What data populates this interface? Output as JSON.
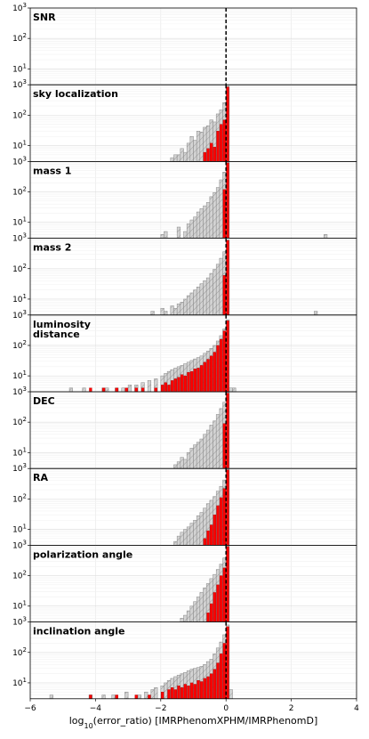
{
  "chart_data": {
    "type": "histogram",
    "xlabel_parts": {
      "prefix": "log",
      "sub": "10",
      "suffix": "(error_ratio) [IMRPhenomXPHM/IMRPhenomD]"
    },
    "xlim": [
      -6,
      4
    ],
    "xticks": [
      -6,
      -4,
      -2,
      0,
      2,
      4
    ],
    "yscale": "log",
    "ylim": [
      3,
      1000
    ],
    "yticks": [
      {
        "value": 10,
        "label": "10",
        "exp": "1"
      },
      {
        "value": 100,
        "label": "10",
        "exp": "2"
      },
      {
        "value": 1000,
        "label": "10",
        "exp": "3"
      }
    ],
    "reference_line_x": 0,
    "bin_width": 0.1,
    "grid": true,
    "series_style": {
      "all": {
        "fill": "#d3d3d3",
        "stroke": "#888888",
        "hatch": true
      },
      "highlight": {
        "fill": "#ff0000",
        "stroke": "#aa0000"
      }
    },
    "panels": [
      {
        "title": [
          "SNR"
        ],
        "bins_all": [],
        "bins_highlight": []
      },
      {
        "title": [
          "sky localization"
        ],
        "bins_all": [
          [
            -1.7,
            4
          ],
          [
            -1.6,
            5
          ],
          [
            -1.5,
            5
          ],
          [
            -1.4,
            8
          ],
          [
            -1.3,
            6
          ],
          [
            -1.2,
            12
          ],
          [
            -1.1,
            20
          ],
          [
            -1.0,
            15
          ],
          [
            -0.9,
            30
          ],
          [
            -0.8,
            28
          ],
          [
            -0.7,
            40
          ],
          [
            -0.6,
            45
          ],
          [
            -0.5,
            70
          ],
          [
            -0.4,
            60
          ],
          [
            -0.3,
            110
          ],
          [
            -0.2,
            150
          ],
          [
            -0.1,
            260
          ],
          [
            0.0,
            900
          ]
        ],
        "bins_highlight": [
          [
            -0.7,
            6
          ],
          [
            -0.6,
            8
          ],
          [
            -0.5,
            12
          ],
          [
            -0.4,
            9
          ],
          [
            -0.3,
            30
          ],
          [
            -0.2,
            50
          ],
          [
            -0.1,
            70
          ],
          [
            0.0,
            850
          ]
        ]
      },
      {
        "title": [
          "mass 1"
        ],
        "bins_all": [
          [
            -2.0,
            4
          ],
          [
            -1.9,
            5
          ],
          [
            -1.5,
            7
          ],
          [
            -1.3,
            5
          ],
          [
            -1.2,
            9
          ],
          [
            -1.1,
            12
          ],
          [
            -1.0,
            15
          ],
          [
            -0.9,
            22
          ],
          [
            -0.8,
            28
          ],
          [
            -0.7,
            35
          ],
          [
            -0.6,
            45
          ],
          [
            -0.5,
            70
          ],
          [
            -0.4,
            95
          ],
          [
            -0.3,
            140
          ],
          [
            -0.2,
            250
          ],
          [
            -0.1,
            450
          ],
          [
            0.0,
            950
          ],
          [
            3.0,
            4
          ]
        ],
        "bins_highlight": [
          [
            -0.1,
            120
          ],
          [
            0.0,
            900
          ]
        ]
      },
      {
        "title": [
          "mass 2"
        ],
        "bins_all": [
          [
            -2.3,
            4
          ],
          [
            -2.0,
            5
          ],
          [
            -1.9,
            4
          ],
          [
            -1.7,
            6
          ],
          [
            -1.6,
            5
          ],
          [
            -1.5,
            7
          ],
          [
            -1.4,
            8
          ],
          [
            -1.3,
            10
          ],
          [
            -1.2,
            13
          ],
          [
            -1.1,
            16
          ],
          [
            -1.0,
            20
          ],
          [
            -0.9,
            25
          ],
          [
            -0.8,
            32
          ],
          [
            -0.7,
            40
          ],
          [
            -0.6,
            50
          ],
          [
            -0.5,
            70
          ],
          [
            -0.4,
            95
          ],
          [
            -0.3,
            140
          ],
          [
            -0.2,
            220
          ],
          [
            -0.1,
            360
          ],
          [
            0.0,
            900
          ],
          [
            2.7,
            4
          ]
        ],
        "bins_highlight": [
          [
            -0.1,
            60
          ],
          [
            0.0,
            850
          ]
        ]
      },
      {
        "title": [
          "luminosity",
          "distance"
        ],
        "bins_all": [
          [
            -4.8,
            4
          ],
          [
            -4.4,
            4
          ],
          [
            -3.8,
            4
          ],
          [
            -3.7,
            4
          ],
          [
            -3.4,
            4
          ],
          [
            -3.2,
            4
          ],
          [
            -3.0,
            5
          ],
          [
            -2.8,
            5
          ],
          [
            -2.6,
            6
          ],
          [
            -2.4,
            7
          ],
          [
            -2.2,
            8
          ],
          [
            -2.0,
            10
          ],
          [
            -1.9,
            12
          ],
          [
            -1.8,
            14
          ],
          [
            -1.7,
            16
          ],
          [
            -1.6,
            18
          ],
          [
            -1.5,
            20
          ],
          [
            -1.4,
            22
          ],
          [
            -1.3,
            25
          ],
          [
            -1.2,
            28
          ],
          [
            -1.1,
            32
          ],
          [
            -1.0,
            36
          ],
          [
            -0.9,
            40
          ],
          [
            -0.8,
            45
          ],
          [
            -0.7,
            55
          ],
          [
            -0.6,
            65
          ],
          [
            -0.5,
            80
          ],
          [
            -0.4,
            100
          ],
          [
            -0.3,
            140
          ],
          [
            -0.2,
            210
          ],
          [
            -0.1,
            350
          ],
          [
            0.0,
            700
          ],
          [
            0.1,
            4
          ],
          [
            0.2,
            4
          ]
        ],
        "bins_highlight": [
          [
            -4.2,
            4
          ],
          [
            -3.8,
            4
          ],
          [
            -3.4,
            4
          ],
          [
            -3.1,
            4
          ],
          [
            -2.8,
            4
          ],
          [
            -2.6,
            4
          ],
          [
            -2.2,
            4
          ],
          [
            -2.0,
            5
          ],
          [
            -1.9,
            6
          ],
          [
            -1.8,
            5
          ],
          [
            -1.7,
            7
          ],
          [
            -1.6,
            8
          ],
          [
            -1.5,
            9
          ],
          [
            -1.4,
            11
          ],
          [
            -1.3,
            10
          ],
          [
            -1.2,
            13
          ],
          [
            -1.1,
            14
          ],
          [
            -1.0,
            17
          ],
          [
            -0.9,
            18
          ],
          [
            -0.8,
            22
          ],
          [
            -0.7,
            28
          ],
          [
            -0.6,
            35
          ],
          [
            -0.5,
            45
          ],
          [
            -0.4,
            60
          ],
          [
            -0.3,
            100
          ],
          [
            -0.2,
            160
          ],
          [
            -0.1,
            300
          ],
          [
            0.0,
            650
          ]
        ]
      },
      {
        "title": [
          "DEC"
        ],
        "bins_all": [
          [
            -1.6,
            4
          ],
          [
            -1.5,
            5
          ],
          [
            -1.4,
            7
          ],
          [
            -1.3,
            6
          ],
          [
            -1.2,
            10
          ],
          [
            -1.1,
            14
          ],
          [
            -1.0,
            18
          ],
          [
            -0.9,
            22
          ],
          [
            -0.8,
            28
          ],
          [
            -0.7,
            40
          ],
          [
            -0.6,
            55
          ],
          [
            -0.5,
            80
          ],
          [
            -0.4,
            110
          ],
          [
            -0.3,
            180
          ],
          [
            -0.2,
            280
          ],
          [
            -0.1,
            450
          ],
          [
            0.0,
            950
          ]
        ],
        "bins_highlight": [
          [
            -0.1,
            90
          ],
          [
            0.0,
            900
          ]
        ]
      },
      {
        "title": [
          "RA"
        ],
        "bins_all": [
          [
            -1.6,
            4
          ],
          [
            -1.5,
            6
          ],
          [
            -1.4,
            8
          ],
          [
            -1.3,
            10
          ],
          [
            -1.2,
            12
          ],
          [
            -1.1,
            16
          ],
          [
            -1.0,
            20
          ],
          [
            -0.9,
            28
          ],
          [
            -0.8,
            36
          ],
          [
            -0.7,
            50
          ],
          [
            -0.6,
            70
          ],
          [
            -0.5,
            90
          ],
          [
            -0.4,
            120
          ],
          [
            -0.3,
            180
          ],
          [
            -0.2,
            260
          ],
          [
            -0.1,
            420
          ],
          [
            0.0,
            950
          ]
        ],
        "bins_highlight": [
          [
            -0.7,
            5
          ],
          [
            -0.6,
            9
          ],
          [
            -0.5,
            14
          ],
          [
            -0.4,
            30
          ],
          [
            -0.3,
            60
          ],
          [
            -0.2,
            110
          ],
          [
            -0.1,
            220
          ],
          [
            0.0,
            900
          ]
        ]
      },
      {
        "title": [
          "polarization angle"
        ],
        "bins_all": [
          [
            -1.4,
            4
          ],
          [
            -1.3,
            5
          ],
          [
            -1.2,
            7
          ],
          [
            -1.1,
            10
          ],
          [
            -1.0,
            14
          ],
          [
            -0.9,
            20
          ],
          [
            -0.8,
            28
          ],
          [
            -0.7,
            40
          ],
          [
            -0.6,
            55
          ],
          [
            -0.5,
            80
          ],
          [
            -0.4,
            110
          ],
          [
            -0.3,
            160
          ],
          [
            -0.2,
            240
          ],
          [
            -0.1,
            380
          ],
          [
            0.0,
            950
          ]
        ],
        "bins_highlight": [
          [
            -0.6,
            6
          ],
          [
            -0.5,
            12
          ],
          [
            -0.4,
            28
          ],
          [
            -0.3,
            50
          ],
          [
            -0.2,
            100
          ],
          [
            -0.1,
            180
          ],
          [
            0.0,
            900
          ]
        ]
      },
      {
        "title": [
          "inclination angle"
        ],
        "bins_all": [
          [
            -5.4,
            4
          ],
          [
            -4.2,
            4
          ],
          [
            -3.8,
            4
          ],
          [
            -3.5,
            4
          ],
          [
            -3.1,
            5
          ],
          [
            -2.7,
            4
          ],
          [
            -2.5,
            5
          ],
          [
            -2.3,
            6
          ],
          [
            -2.2,
            7
          ],
          [
            -2.0,
            8
          ],
          [
            -1.9,
            10
          ],
          [
            -1.8,
            12
          ],
          [
            -1.7,
            14
          ],
          [
            -1.6,
            16
          ],
          [
            -1.5,
            18
          ],
          [
            -1.4,
            20
          ],
          [
            -1.3,
            22
          ],
          [
            -1.2,
            25
          ],
          [
            -1.1,
            28
          ],
          [
            -1.0,
            30
          ],
          [
            -0.9,
            32
          ],
          [
            -0.8,
            35
          ],
          [
            -0.7,
            40
          ],
          [
            -0.6,
            50
          ],
          [
            -0.5,
            60
          ],
          [
            -0.4,
            90
          ],
          [
            -0.3,
            140
          ],
          [
            -0.2,
            220
          ],
          [
            -0.1,
            380
          ],
          [
            0.0,
            800
          ],
          [
            0.1,
            6
          ]
        ],
        "bins_highlight": [
          [
            -4.2,
            4
          ],
          [
            -3.4,
            4
          ],
          [
            -2.8,
            4
          ],
          [
            -2.4,
            4
          ],
          [
            -2.0,
            5
          ],
          [
            -1.8,
            6
          ],
          [
            -1.7,
            7
          ],
          [
            -1.6,
            6
          ],
          [
            -1.5,
            8
          ],
          [
            -1.4,
            7
          ],
          [
            -1.3,
            9
          ],
          [
            -1.2,
            8
          ],
          [
            -1.1,
            10
          ],
          [
            -1.0,
            9
          ],
          [
            -0.9,
            12
          ],
          [
            -0.8,
            11
          ],
          [
            -0.7,
            14
          ],
          [
            -0.6,
            16
          ],
          [
            -0.5,
            20
          ],
          [
            -0.4,
            28
          ],
          [
            -0.3,
            45
          ],
          [
            -0.2,
            90
          ],
          [
            -0.1,
            200
          ],
          [
            0.0,
            700
          ]
        ]
      }
    ]
  }
}
